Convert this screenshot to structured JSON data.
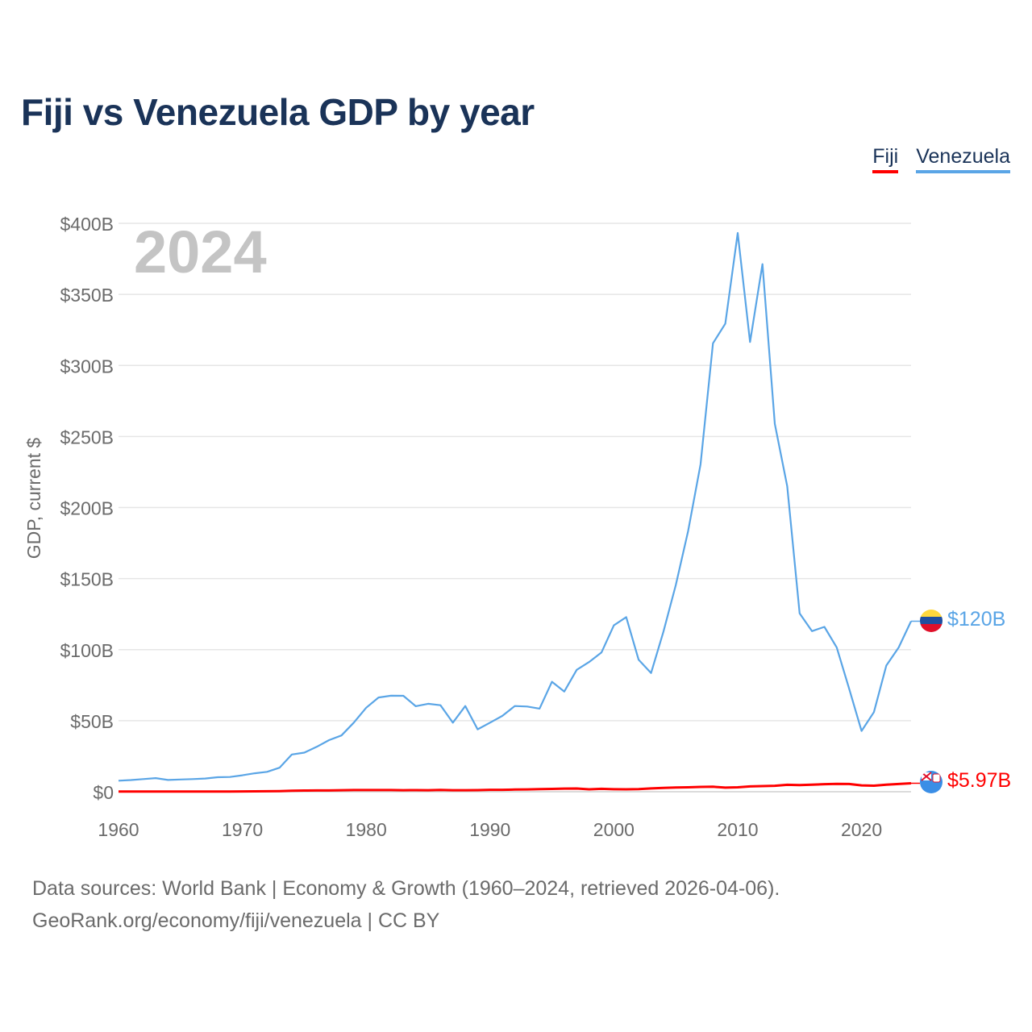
{
  "title": "Fiji vs Venezuela GDP by year",
  "legend": {
    "fiji": "Fiji",
    "venezuela": "Venezuela"
  },
  "year_label": "2024",
  "source": {
    "line1": "Data sources: World Bank | Economy & Growth (1960–2024, retrieved 2026-04-06).",
    "line2": "GeoRank.org/economy/fiji/venezuela | CC BY"
  },
  "chart_data": {
    "type": "line",
    "title": "Fiji vs Venezuela GDP by year",
    "xlabel": "",
    "ylabel": "GDP, current $",
    "xlim": [
      1960,
      2024
    ],
    "ylim": [
      0,
      400
    ],
    "y_unit": "billions USD",
    "yticks": [
      0,
      50,
      100,
      150,
      200,
      250,
      300,
      350,
      400
    ],
    "ytick_labels": [
      "$0",
      "$50B",
      "$100B",
      "$150B",
      "$200B",
      "$250B",
      "$300B",
      "$350B",
      "$400B"
    ],
    "xticks": [
      1960,
      1970,
      1980,
      1990,
      2000,
      2010,
      2020
    ],
    "xtick_labels": [
      "1960",
      "1970",
      "1980",
      "1990",
      "2000",
      "2010",
      "2020"
    ],
    "grid": true,
    "legend_position": "top-right",
    "x": [
      1960,
      1961,
      1962,
      1963,
      1964,
      1965,
      1966,
      1967,
      1968,
      1969,
      1970,
      1971,
      1972,
      1973,
      1974,
      1975,
      1976,
      1977,
      1978,
      1979,
      1980,
      1981,
      1982,
      1983,
      1984,
      1985,
      1986,
      1987,
      1988,
      1989,
      1990,
      1991,
      1992,
      1993,
      1994,
      1995,
      1996,
      1997,
      1998,
      1999,
      2000,
      2001,
      2002,
      2003,
      2004,
      2005,
      2006,
      2007,
      2008,
      2009,
      2010,
      2011,
      2012,
      2013,
      2014,
      2015,
      2016,
      2017,
      2018,
      2019,
      2020,
      2021,
      2022,
      2023,
      2024
    ],
    "series": [
      {
        "name": "Venezuela",
        "color": "#5aa5e6",
        "end_label": "$120B",
        "values": [
          7.8,
          8.2,
          8.9,
          9.6,
          8.3,
          8.6,
          8.9,
          9.3,
          10.2,
          10.4,
          11.6,
          13.0,
          14.0,
          16.9,
          26.2,
          27.5,
          31.6,
          36.3,
          39.6,
          48.6,
          59.1,
          66.3,
          67.6,
          67.5,
          60.2,
          61.9,
          60.9,
          48.6,
          60.3,
          43.9,
          48.6,
          53.4,
          60.3,
          60.0,
          58.5,
          77.4,
          70.5,
          85.8,
          91.3,
          98.0,
          117.1,
          122.9,
          92.9,
          83.5,
          112.5,
          145.5,
          183.5,
          230.4,
          315.6,
          329.4,
          393.2,
          316.5,
          371.3,
          258.9,
          215.0,
          125.5,
          113.0,
          116.0,
          101.5,
          72.5,
          42.8,
          56.0,
          88.8,
          101.5,
          120.0
        ]
      },
      {
        "name": "Fiji",
        "color": "#ff0000",
        "end_label": "$5.97B",
        "values": [
          0.11,
          0.12,
          0.12,
          0.13,
          0.13,
          0.14,
          0.15,
          0.16,
          0.17,
          0.19,
          0.22,
          0.26,
          0.33,
          0.47,
          0.68,
          0.86,
          0.88,
          0.93,
          1.06,
          1.19,
          1.18,
          1.19,
          1.17,
          1.08,
          1.13,
          1.07,
          1.22,
          1.1,
          1.05,
          1.13,
          1.34,
          1.38,
          1.56,
          1.64,
          1.81,
          1.98,
          2.23,
          2.25,
          1.73,
          2.04,
          1.78,
          1.68,
          1.84,
          2.32,
          2.73,
          3.0,
          3.1,
          3.4,
          3.52,
          2.87,
          3.14,
          3.77,
          3.97,
          4.19,
          4.86,
          4.68,
          4.93,
          5.35,
          5.58,
          5.44,
          4.48,
          4.27,
          4.97,
          5.45,
          5.97
        ]
      }
    ]
  }
}
